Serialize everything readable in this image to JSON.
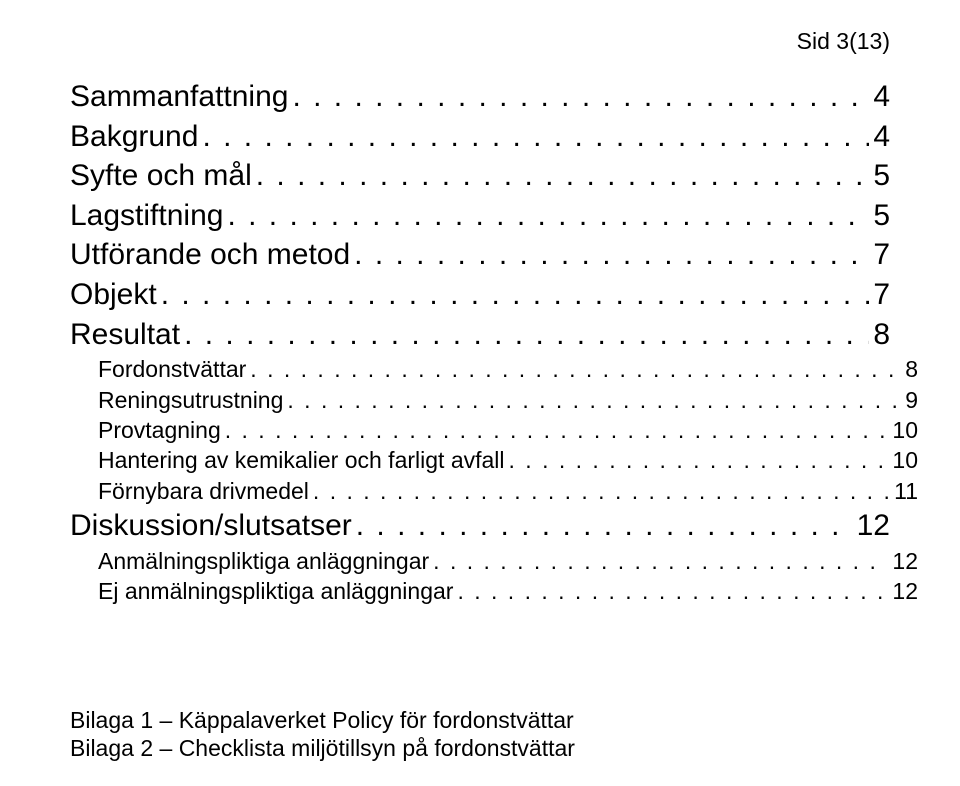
{
  "page_header": "Sid 3(13)",
  "colors": {
    "text": "#000000",
    "background": "#ffffff"
  },
  "typography": {
    "font_family": "Arial",
    "level1_fontsize_pt": 22,
    "level2_fontsize_pt": 17,
    "header_fontsize_pt": 17,
    "appendix_fontsize_pt": 17
  },
  "toc": {
    "entries": [
      {
        "level": 1,
        "title": "Sammanfattning",
        "page": "4"
      },
      {
        "level": 1,
        "title": "Bakgrund",
        "page": "4"
      },
      {
        "level": 1,
        "title": "Syfte och mål",
        "page": "5"
      },
      {
        "level": 1,
        "title": "Lagstiftning",
        "page": "5"
      },
      {
        "level": 1,
        "title": "Utförande och metod",
        "page": "7"
      },
      {
        "level": 1,
        "title": "Objekt",
        "page": "7"
      },
      {
        "level": 1,
        "title": "Resultat",
        "page": "8"
      },
      {
        "level": 2,
        "title": "Fordonstvättar",
        "page": "8"
      },
      {
        "level": 2,
        "title": "Reningsutrustning",
        "page": "9"
      },
      {
        "level": 2,
        "title": "Provtagning",
        "page": "10"
      },
      {
        "level": 2,
        "title": "Hantering av kemikalier och farligt avfall",
        "page": "10"
      },
      {
        "level": 2,
        "title": "Förnybara drivmedel",
        "page": "11"
      },
      {
        "level": 1,
        "title": "Diskussion/slutsatser",
        "page": "12"
      },
      {
        "level": 2,
        "title": "Anmälningspliktiga anläggningar",
        "page": "12"
      },
      {
        "level": 2,
        "title": "Ej anmälningspliktiga anläggningar",
        "page": "12"
      }
    ]
  },
  "appendices": [
    "Bilaga 1 – Käppalaverket Policy för fordonstvättar",
    "Bilaga 2 – Checklista miljötillsyn på fordonstvättar"
  ]
}
